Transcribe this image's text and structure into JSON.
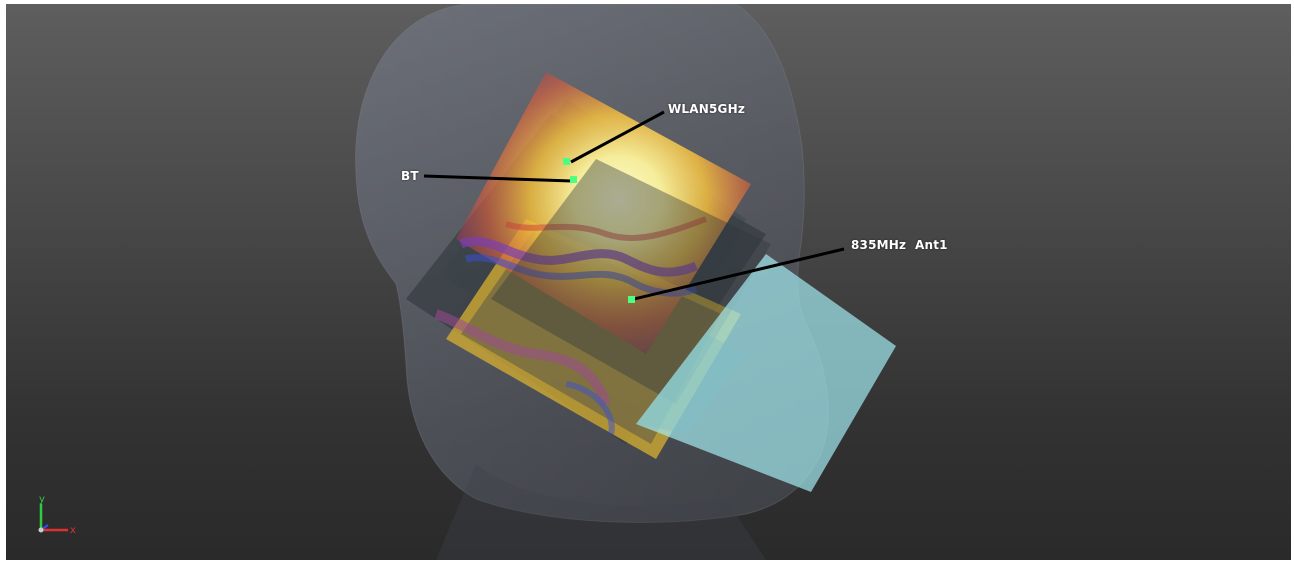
{
  "viewport": {
    "background_top": "#5e5e5e",
    "background_bottom": "#2a2a2a",
    "model": "head-phantom"
  },
  "labels": {
    "wlan": "WLAN5GHz",
    "bt": "BT",
    "ant835": "835MHz  Ant1"
  },
  "axis_triad": {
    "y_label": "y",
    "x_label": "x",
    "y_color": "#2ecc40",
    "x_color": "#e03030",
    "z_color": "#3050ff"
  },
  "colors": {
    "marker": "#4dff80",
    "leader_line": "#000000",
    "phone_panel": "#9fe6ec",
    "heat_hot": "#fff6a0",
    "heat_warm": "#f4b52a",
    "heat_red": "#c83a3a",
    "heat_purple": "#7a3fb0",
    "heat_blue": "#3a4fd0"
  }
}
